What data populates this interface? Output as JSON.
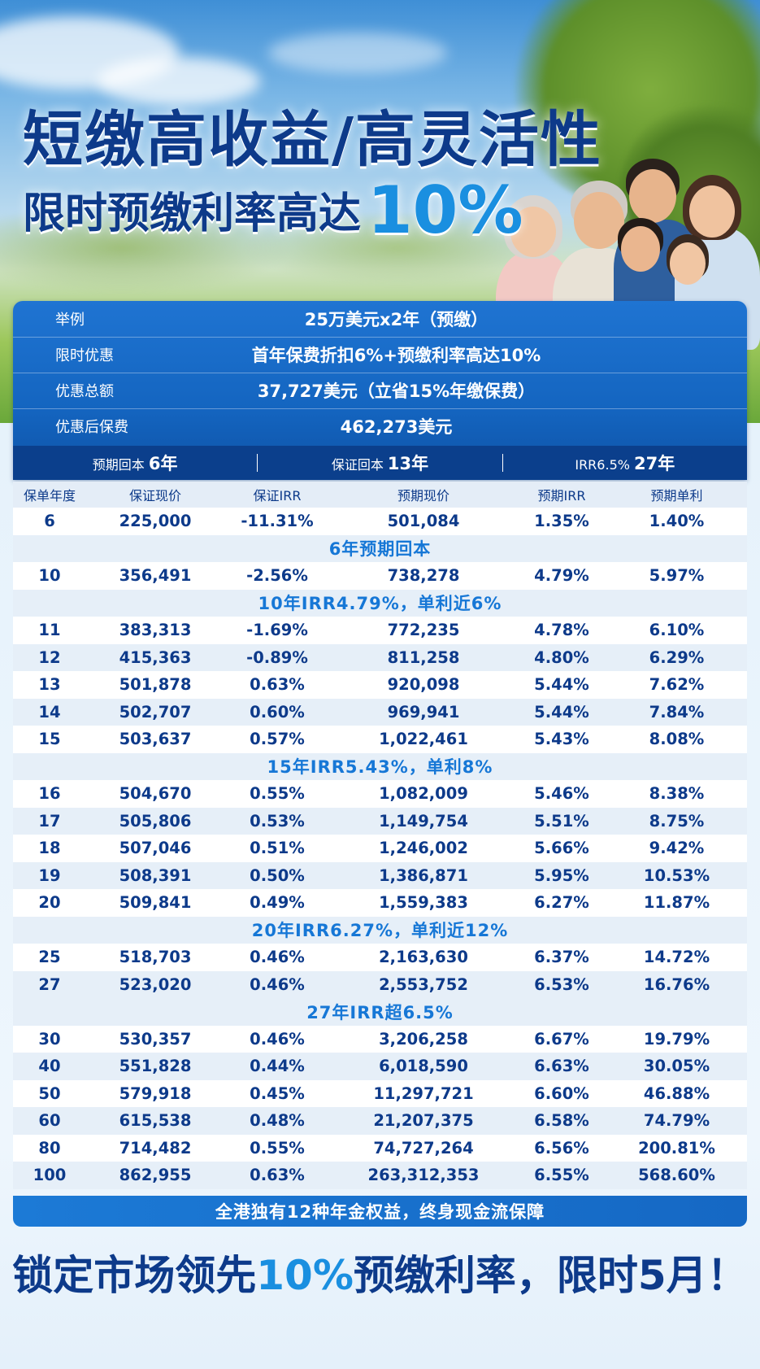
{
  "hero": {
    "headline_line1": "短缴高收益/高灵活性",
    "headline_line2_prefix": "限时预缴利率高达",
    "headline_line2_rate": "10%"
  },
  "summary": [
    {
      "label": "举例",
      "value": "25万美元x2年（预缴）"
    },
    {
      "label": "限时优惠",
      "value": "首年保费折扣6%+预缴利率高达10%"
    },
    {
      "label": "优惠总额",
      "value": "37,727美元（立省15%年缴保费）"
    },
    {
      "label": "优惠后保费",
      "value": "462,273美元"
    }
  ],
  "payback_bar": {
    "expected_label": "预期回本",
    "expected_value": "6年",
    "guaranteed_label": "保证回本",
    "guaranteed_value": "13年",
    "irr_label": "IRR6.5%",
    "irr_value": "27年"
  },
  "table": {
    "headers": [
      "保单年度",
      "保证现价",
      "保证IRR",
      "预期现价",
      "预期IRR",
      "预期单利"
    ],
    "rows": [
      {
        "type": "data",
        "cells": [
          "6",
          "225,000",
          "-11.31%",
          "501,084",
          "1.35%",
          "1.40%"
        ]
      },
      {
        "type": "note",
        "text": "6年预期回本"
      },
      {
        "type": "data",
        "cells": [
          "10",
          "356,491",
          "-2.56%",
          "738,278",
          "4.79%",
          "5.97%"
        ]
      },
      {
        "type": "note",
        "text": "10年IRR4.79%，单利近6%"
      },
      {
        "type": "data",
        "cells": [
          "11",
          "383,313",
          "-1.69%",
          "772,235",
          "4.78%",
          "6.10%"
        ]
      },
      {
        "type": "data",
        "cells": [
          "12",
          "415,363",
          "-0.89%",
          "811,258",
          "4.80%",
          "6.29%"
        ]
      },
      {
        "type": "data",
        "cells": [
          "13",
          "501,878",
          "0.63%",
          "920,098",
          "5.44%",
          "7.62%"
        ]
      },
      {
        "type": "data",
        "cells": [
          "14",
          "502,707",
          "0.60%",
          "969,941",
          "5.44%",
          "7.84%"
        ]
      },
      {
        "type": "data",
        "cells": [
          "15",
          "503,637",
          "0.57%",
          "1,022,461",
          "5.43%",
          "8.08%"
        ]
      },
      {
        "type": "note",
        "text": "15年IRR5.43%，单利8%"
      },
      {
        "type": "data",
        "cells": [
          "16",
          "504,670",
          "0.55%",
          "1,082,009",
          "5.46%",
          "8.38%"
        ]
      },
      {
        "type": "data",
        "cells": [
          "17",
          "505,806",
          "0.53%",
          "1,149,754",
          "5.51%",
          "8.75%"
        ]
      },
      {
        "type": "data",
        "cells": [
          "18",
          "507,046",
          "0.51%",
          "1,246,002",
          "5.66%",
          "9.42%"
        ]
      },
      {
        "type": "data",
        "cells": [
          "19",
          "508,391",
          "0.50%",
          "1,386,871",
          "5.95%",
          "10.53%"
        ]
      },
      {
        "type": "data",
        "cells": [
          "20",
          "509,841",
          "0.49%",
          "1,559,383",
          "6.27%",
          "11.87%"
        ]
      },
      {
        "type": "note",
        "text": "20年IRR6.27%，单利近12%"
      },
      {
        "type": "data",
        "cells": [
          "25",
          "518,703",
          "0.46%",
          "2,163,630",
          "6.37%",
          "14.72%"
        ]
      },
      {
        "type": "data",
        "cells": [
          "27",
          "523,020",
          "0.46%",
          "2,553,752",
          "6.53%",
          "16.76%"
        ]
      },
      {
        "type": "note",
        "text": "27年IRR超6.5%"
      },
      {
        "type": "data",
        "cells": [
          "30",
          "530,357",
          "0.46%",
          "3,206,258",
          "6.67%",
          "19.79%"
        ]
      },
      {
        "type": "data",
        "cells": [
          "40",
          "551,828",
          "0.44%",
          "6,018,590",
          "6.63%",
          "30.05%"
        ]
      },
      {
        "type": "data",
        "cells": [
          "50",
          "579,918",
          "0.45%",
          "11,297,721",
          "6.60%",
          "46.88%"
        ]
      },
      {
        "type": "data",
        "cells": [
          "60",
          "615,538",
          "0.48%",
          "21,207,375",
          "6.58%",
          "74.79%"
        ]
      },
      {
        "type": "data",
        "cells": [
          "80",
          "714,482",
          "0.55%",
          "74,727,264",
          "6.56%",
          "200.81%"
        ]
      },
      {
        "type": "data",
        "cells": [
          "100",
          "862,955",
          "0.63%",
          "263,312,353",
          "6.55%",
          "568.60%"
        ]
      }
    ]
  },
  "footer_bar": "全港独有12种年金权益，终身现金流保障",
  "cta": {
    "prefix": "锁定市场领先",
    "highlight": "10%",
    "suffix": "预缴利率，限时5月！"
  }
}
